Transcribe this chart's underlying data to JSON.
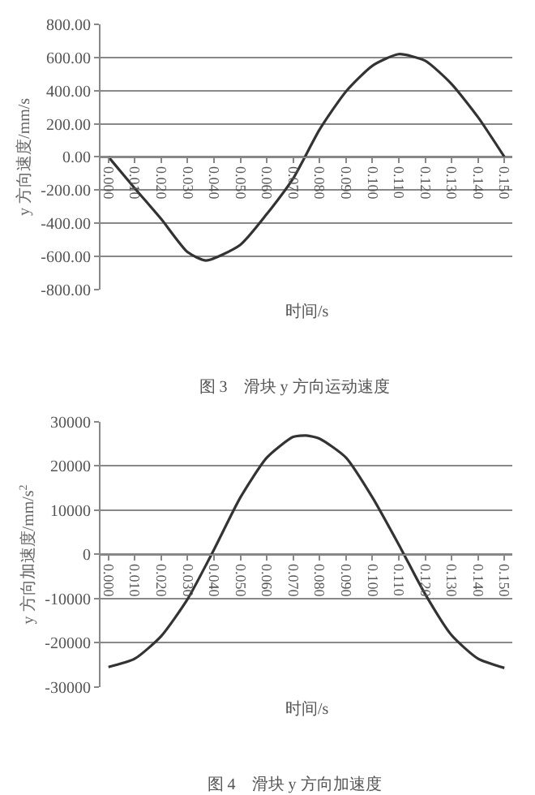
{
  "chart_data": [
    {
      "type": "line",
      "title": "图 3　滑块 y 方向运动速度",
      "xlabel": "时间/s",
      "ylabel": "y 方向速度/mm/s",
      "color": "#333333",
      "grid": "y",
      "marker": "none",
      "line_style": "solid",
      "x": [
        0,
        0.01,
        0.02,
        0.03,
        0.037,
        0.05,
        0.06,
        0.07,
        0.08,
        0.09,
        0.1,
        0.11,
        0.12,
        0.13,
        0.14,
        0.15
      ],
      "values": [
        0,
        -190,
        -375,
        -575,
        -625,
        -530,
        -345,
        -130,
        165,
        395,
        550,
        620,
        580,
        440,
        240,
        0
      ],
      "xlim": [
        -0.003,
        0.153
      ],
      "xticks": [
        {
          "value": 0,
          "label": "0.000"
        },
        {
          "value": 0.01,
          "label": "0.010"
        },
        {
          "value": 0.02,
          "label": "0.020"
        },
        {
          "value": 0.03,
          "label": "0.030"
        },
        {
          "value": 0.04,
          "label": "0.040"
        },
        {
          "value": 0.05,
          "label": "0.050"
        },
        {
          "value": 0.06,
          "label": "0.060"
        },
        {
          "value": 0.07,
          "label": "0.070"
        },
        {
          "value": 0.08,
          "label": "0.080"
        },
        {
          "value": 0.09,
          "label": "0.090"
        },
        {
          "value": 0.1,
          "label": "0.100"
        },
        {
          "value": 0.11,
          "label": "0.110"
        },
        {
          "value": 0.12,
          "label": "0.120"
        },
        {
          "value": 0.13,
          "label": "0.130"
        },
        {
          "value": 0.14,
          "label": "0.140"
        },
        {
          "value": 0.15,
          "label": "0.150"
        }
      ],
      "ylim": [
        -800,
        800
      ],
      "yticks": [
        {
          "value": 800,
          "label": "800.00"
        },
        {
          "value": 600,
          "label": "600.00"
        },
        {
          "value": 400,
          "label": "400.00"
        },
        {
          "value": 200,
          "label": "200.00"
        },
        {
          "value": 0,
          "label": "0.00"
        },
        {
          "value": -200,
          "label": "-200.00"
        },
        {
          "value": -400,
          "label": "-400.00"
        },
        {
          "value": -600,
          "label": "-600.00"
        },
        {
          "value": -800,
          "label": "-800.00"
        }
      ]
    },
    {
      "type": "line",
      "title": "图 4　滑块 y 方向加速度",
      "xlabel": "时间/s",
      "ylabel": "y 方向加速度/mm/s$^{2}$",
      "color": "#333333",
      "grid": "y",
      "marker": "none",
      "line_style": "solid",
      "x": [
        0,
        0.01,
        0.02,
        0.03,
        0.04,
        0.05,
        0.06,
        0.07,
        0.075,
        0.08,
        0.09,
        0.1,
        0.11,
        0.12,
        0.13,
        0.14,
        0.15
      ],
      "values": [
        -25500,
        -23600,
        -18500,
        -10100,
        1100,
        12900,
        21900,
        26600,
        26900,
        26200,
        21900,
        12900,
        2200,
        -9000,
        -18300,
        -23600,
        -25700
      ],
      "xlim": [
        -0.003,
        0.153
      ],
      "xticks": [
        {
          "value": 0,
          "label": "0.000"
        },
        {
          "value": 0.01,
          "label": "0.010"
        },
        {
          "value": 0.02,
          "label": "0.020"
        },
        {
          "value": 0.03,
          "label": "0.030"
        },
        {
          "value": 0.04,
          "label": "0.040"
        },
        {
          "value": 0.05,
          "label": "0.050"
        },
        {
          "value": 0.06,
          "label": "0.060"
        },
        {
          "value": 0.07,
          "label": "0.070"
        },
        {
          "value": 0.08,
          "label": "0.080"
        },
        {
          "value": 0.09,
          "label": "0.090"
        },
        {
          "value": 0.1,
          "label": "0.100"
        },
        {
          "value": 0.11,
          "label": "0.110"
        },
        {
          "value": 0.12,
          "label": "0.120"
        },
        {
          "value": 0.13,
          "label": "0.130"
        },
        {
          "value": 0.14,
          "label": "0.140"
        },
        {
          "value": 0.15,
          "label": "0.150"
        }
      ],
      "ylim": [
        -30000,
        30000
      ],
      "yticks": [
        30000,
        20000,
        10000,
        0,
        -10000,
        -20000,
        -30000
      ]
    }
  ]
}
